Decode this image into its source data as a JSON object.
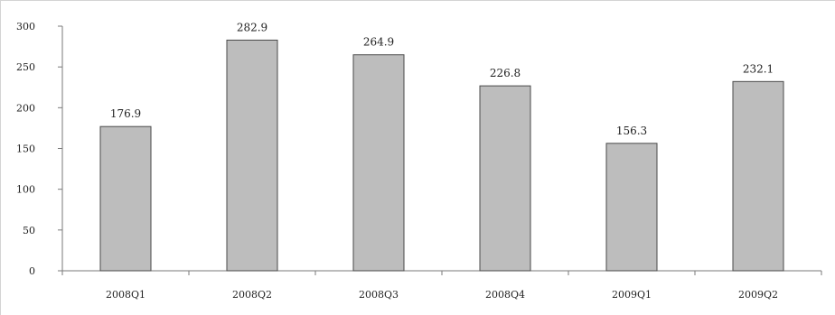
{
  "chart_data": {
    "type": "bar",
    "categories": [
      "2008Q1",
      "2008Q2",
      "2008Q3",
      "2008Q4",
      "2009Q1",
      "2009Q2"
    ],
    "values": [
      176.9,
      282.9,
      264.9,
      226.8,
      156.3,
      232.1
    ],
    "value_labels": [
      "176.9",
      "282.9",
      "264.9",
      "226.8",
      "156.3",
      "232.1"
    ],
    "y_ticks": [
      "0",
      "50",
      "100",
      "150",
      "200",
      "250",
      "300"
    ],
    "title": "",
    "xlabel": "",
    "ylabel": "",
    "ylim": [
      0,
      300
    ],
    "grid": false,
    "legend": "none",
    "colors": {
      "bar_fill": "#bdbdbd",
      "bar_stroke": "#4a4a4a",
      "axis": "#7a7a7a"
    }
  }
}
